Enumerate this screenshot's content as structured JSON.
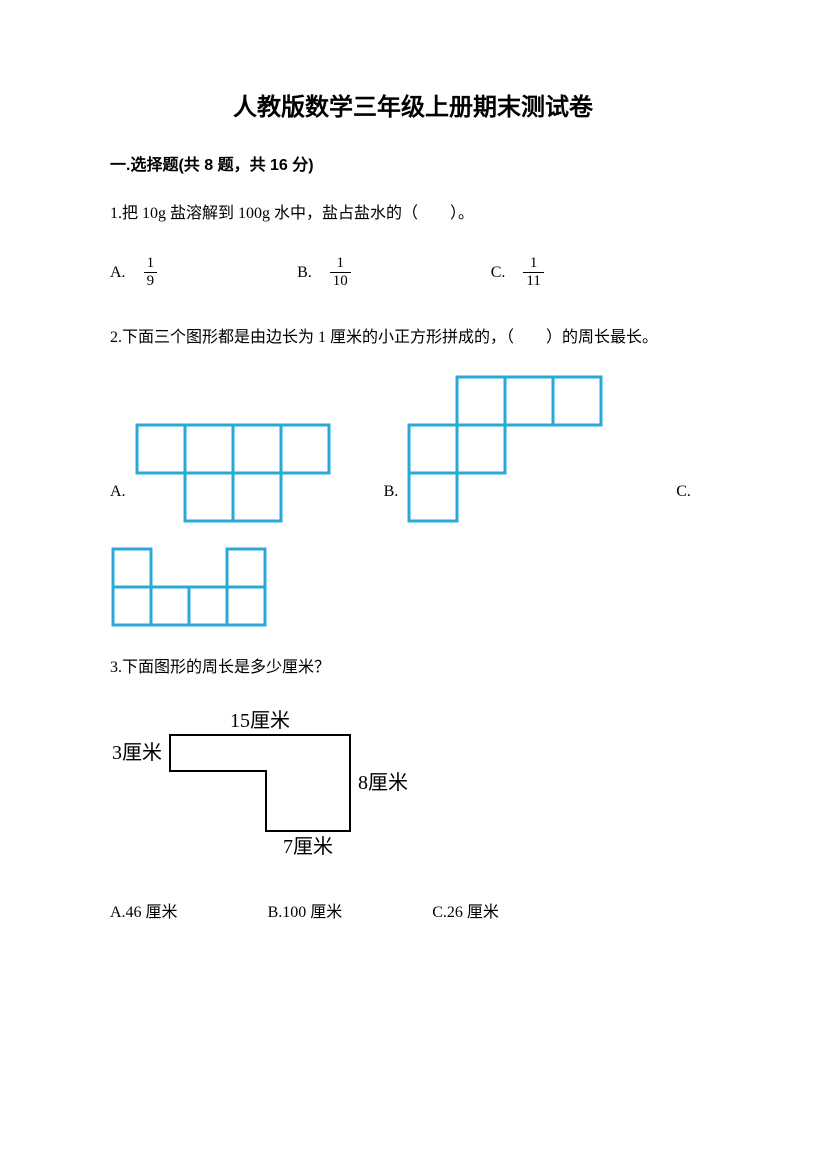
{
  "title": "人教版数学三年级上册期末测试卷",
  "section1": {
    "header": "一.选择题(共 8 题，共 16 分)"
  },
  "q1": {
    "text": "1.把 10g 盐溶解到 100g 水中，盐占盐水的（　　）。",
    "options": {
      "a_label": "A.",
      "a_num": "1",
      "a_den": "9",
      "b_label": "B.",
      "b_num": "1",
      "b_den": "10",
      "c_label": "C.",
      "c_num": "1",
      "c_den": "11"
    }
  },
  "q2": {
    "text": "2.下面三个图形都是由边长为 1 厘米的小正方形拼成的，（　　）的周长最长。",
    "a_label": "A.",
    "b_label": "B.",
    "c_label": "C.",
    "figure": {
      "cell_size": 48,
      "stroke_color": "#2aa8d8",
      "stroke_width": 3,
      "fill_color": "#ffffff",
      "shape_a_cells": [
        [
          0,
          0
        ],
        [
          1,
          0
        ],
        [
          2,
          0
        ],
        [
          3,
          0
        ],
        [
          1,
          1
        ],
        [
          2,
          1
        ]
      ],
      "shape_b_cells": [
        [
          1,
          0
        ],
        [
          2,
          0
        ],
        [
          3,
          0
        ],
        [
          0,
          1
        ],
        [
          1,
          1
        ],
        [
          0,
          2
        ]
      ],
      "shape_c_cells": [
        [
          0,
          0
        ],
        [
          3,
          0
        ],
        [
          0,
          1
        ],
        [
          1,
          1
        ],
        [
          2,
          1
        ],
        [
          3,
          1
        ]
      ],
      "shape_c_cell_size": 38
    }
  },
  "q3": {
    "text": "3.下面图形的周长是多少厘米？",
    "labels": {
      "top": "15厘米",
      "left": "3厘米",
      "right": "8厘米",
      "bottom": "7厘米"
    },
    "options": {
      "a": "A.46 厘米",
      "b": "B.100 厘米",
      "c": "C.26 厘米"
    },
    "figure": {
      "stroke_color": "#000000",
      "stroke_width": 2
    }
  }
}
